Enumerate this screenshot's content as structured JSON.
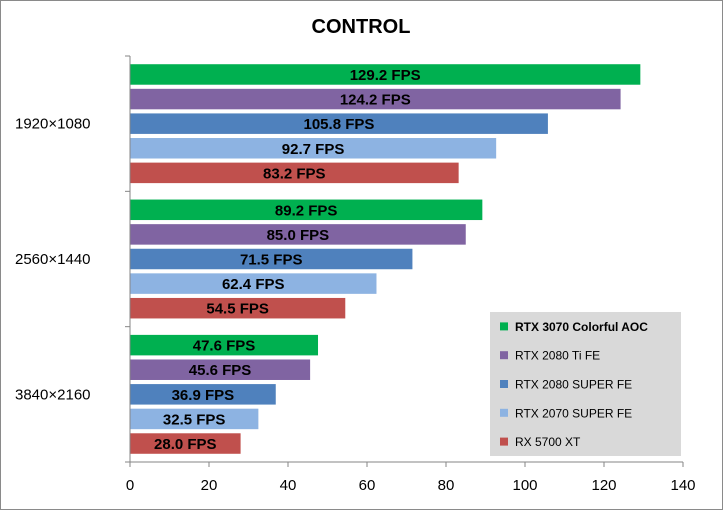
{
  "chart_data": {
    "type": "bar",
    "orientation": "horizontal",
    "title": "CONTROL",
    "categories": [
      "1920×1080",
      "2560×1440",
      "3840×2160"
    ],
    "series": [
      {
        "name": "RTX 3070 Colorful AOC",
        "color": "#00b050",
        "values": [
          129.2,
          89.2,
          47.6
        ],
        "labels": [
          "129.2 FPS",
          "89.2 FPS",
          "47.6 FPS"
        ]
      },
      {
        "name": "RTX 2080 Ti FE",
        "color": "#8064a2",
        "values": [
          124.2,
          85.0,
          45.6
        ],
        "labels": [
          "124.2 FPS",
          "85.0 FPS",
          "45.6 FPS"
        ]
      },
      {
        "name": "RTX 2080 SUPER FE",
        "color": "#4f81bd",
        "values": [
          105.8,
          71.5,
          36.9
        ],
        "labels": [
          "105.8 FPS",
          "71.5 FPS",
          "36.9 FPS"
        ]
      },
      {
        "name": "RTX 2070 SUPER FE",
        "color": "#8db3e2",
        "values": [
          92.7,
          62.4,
          32.5
        ],
        "labels": [
          "92.7 FPS",
          "62.4 FPS",
          "32.5 FPS"
        ]
      },
      {
        "name": "RX 5700 XT",
        "color": "#c0504d",
        "values": [
          83.2,
          54.5,
          28.0
        ],
        "labels": [
          "83.2 FPS",
          "54.5 FPS",
          "28.0 FPS"
        ]
      }
    ],
    "xlim": [
      0,
      140
    ],
    "xticks": [
      "0",
      "20",
      "40",
      "60",
      "80",
      "100",
      "120",
      "140"
    ],
    "grid": false,
    "legend": {
      "position": "bottom-right",
      "bold_entry": 0,
      "background": "#d9d9d9"
    }
  }
}
